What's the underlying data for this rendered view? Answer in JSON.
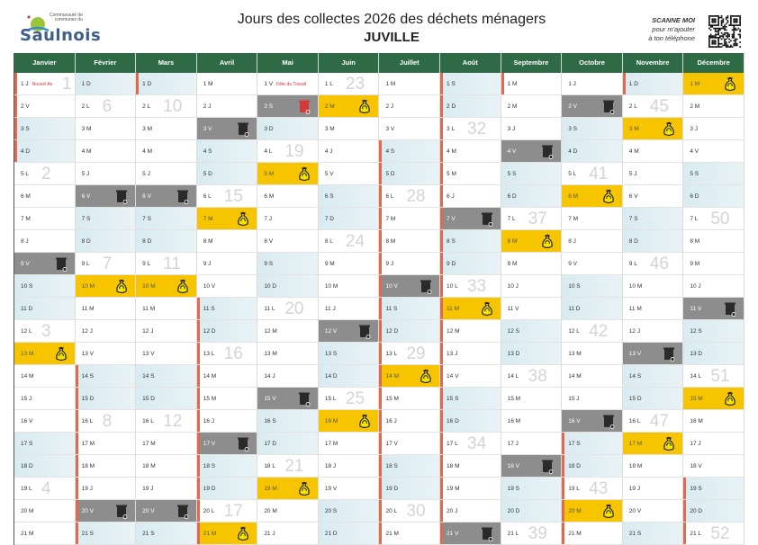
{
  "header": {
    "logo_top": "Communauté de communes du",
    "logo_word": "Saulnois",
    "title": "Jours des collectes 2026 des déchets ménagers",
    "commune": "JUVILLE",
    "scan_title": "SCANNE MOI",
    "scan_line1": "pour m'ajouter",
    "scan_line2": "à ton téléphone"
  },
  "colors": {
    "header": "#2e6a45",
    "bin": "#8d8d8d",
    "bag": "#f6c500",
    "weekend": "#d9ebf1",
    "holiday_bar": "#e06a4e"
  },
  "legend_icons": {
    "bin": "trash-bin-icon",
    "bag": "recycling-bag-icon"
  },
  "months": [
    {
      "name": "Janvier",
      "days": [
        "1 J",
        "2 V",
        "3 S",
        "4 D",
        "5 L",
        "6 M",
        "7 M",
        "8 J",
        "9 V",
        "10 S",
        "11 D",
        "12 L",
        "13 M",
        "14 M",
        "15 J",
        "16 V",
        "17 S",
        "18 D",
        "19 L",
        "20 M",
        "21 M"
      ],
      "weeks": {
        "1": "1",
        "5": "2",
        "12": "3",
        "19": "4"
      },
      "bin": [
        9
      ],
      "bag": [
        13
      ],
      "holidays": [
        1,
        2,
        3,
        4
      ],
      "notes": {
        "1": "Nouvel An"
      }
    },
    {
      "name": "Février",
      "days": [
        "1 D",
        "2 L",
        "3 M",
        "4 M",
        "5 J",
        "6 V",
        "7 S",
        "8 D",
        "9 L",
        "10 M",
        "11 M",
        "12 J",
        "13 V",
        "14 S",
        "15 D",
        "16 L",
        "17 M",
        "18 M",
        "19 J",
        "20 V",
        "21 S"
      ],
      "weeks": {
        "2": "6",
        "9": "7",
        "16": "8"
      },
      "bin": [
        6,
        20
      ],
      "bag": [
        10
      ],
      "holidays": [
        14,
        15,
        16,
        17,
        18,
        19,
        20,
        21
      ],
      "notes": {}
    },
    {
      "name": "Mars",
      "days": [
        "1 D",
        "2 L",
        "3 M",
        "4 M",
        "5 J",
        "6 V",
        "7 S",
        "8 D",
        "9 L",
        "10 M",
        "11 M",
        "12 J",
        "13 V",
        "14 S",
        "15 D",
        "16 L",
        "17 M",
        "18 M",
        "19 J",
        "20 V",
        "21 S"
      ],
      "weeks": {
        "2": "10",
        "9": "11",
        "16": "12"
      },
      "bin": [
        6,
        20
      ],
      "bag": [
        10
      ],
      "holidays": [
        1
      ],
      "notes": {}
    },
    {
      "name": "Avril",
      "days": [
        "1 M",
        "2 J",
        "3 V",
        "4 S",
        "5 D",
        "6 L",
        "7 M",
        "8 M",
        "9 J",
        "10 V",
        "11 S",
        "12 D",
        "13 L",
        "14 M",
        "15 M",
        "16 J",
        "17 V",
        "18 S",
        "19 D",
        "20 L",
        "21 M"
      ],
      "weeks": {
        "6": "15",
        "13": "16",
        "20": "17"
      },
      "bin": [
        3,
        17
      ],
      "bag": [
        7,
        21
      ],
      "holidays": [
        11,
        12,
        13,
        14,
        15,
        16,
        17,
        18,
        19,
        20,
        21
      ],
      "notes": {}
    },
    {
      "name": "Mai",
      "days": [
        "1 V",
        "2 S",
        "3 D",
        "4 L",
        "5 M",
        "6 M",
        "7 J",
        "8 V",
        "9 S",
        "10 D",
        "11 L",
        "12 M",
        "13 M",
        "14 J",
        "15 V",
        "16 S",
        "17 D",
        "18 L",
        "19 M",
        "20 M",
        "21 J"
      ],
      "weeks": {
        "4": "19",
        "11": "20",
        "18": "21"
      },
      "bin": [
        2,
        15
      ],
      "bin_shifted": [
        2
      ],
      "bag": [
        5,
        19
      ],
      "holidays": [],
      "notes": {
        "1": "Fête du Travail"
      }
    },
    {
      "name": "Juin",
      "days": [
        "1 L",
        "2 M",
        "3 M",
        "4 J",
        "5 V",
        "6 S",
        "7 D",
        "8 L",
        "9 M",
        "10 M",
        "11 J",
        "12 V",
        "13 S",
        "14 D",
        "15 L",
        "16 M",
        "17 M",
        "18 J",
        "19 V",
        "20 S",
        "21 D"
      ],
      "weeks": {
        "1": "23",
        "8": "24",
        "15": "25"
      },
      "bin": [
        12
      ],
      "bag": [
        2,
        16
      ],
      "holidays": [],
      "notes": {}
    },
    {
      "name": "Juillet",
      "days": [
        "1 M",
        "2 J",
        "3 V",
        "4 S",
        "5 D",
        "6 L",
        "7 M",
        "8 M",
        "9 J",
        "10 V",
        "11 S",
        "12 D",
        "13 L",
        "14 M",
        "15 M",
        "16 J",
        "17 V",
        "18 S",
        "19 D",
        "20 L",
        "21 M"
      ],
      "weeks": {
        "6": "28",
        "13": "29",
        "20": "30"
      },
      "bin": [
        10
      ],
      "bag": [
        14
      ],
      "holidays": [
        4,
        5,
        6,
        7,
        8,
        9,
        10,
        11,
        12,
        13,
        14,
        15,
        16,
        17,
        18,
        19,
        20,
        21
      ],
      "notes": {}
    },
    {
      "name": "Août",
      "days": [
        "1 S",
        "2 D",
        "3 L",
        "4 M",
        "5 M",
        "6 J",
        "7 V",
        "8 S",
        "9 D",
        "10 L",
        "11 M",
        "12 M",
        "13 J",
        "14 V",
        "15 S",
        "16 D",
        "17 L",
        "18 M",
        "19 M",
        "20 J",
        "21 V"
      ],
      "weeks": {
        "3": "32",
        "10": "33",
        "17": "34"
      },
      "bin": [
        7,
        21
      ],
      "bag": [
        11
      ],
      "holidays": [
        1,
        2,
        3,
        4,
        5,
        6,
        7,
        8,
        9,
        10,
        11,
        12,
        13,
        14,
        15,
        16,
        17,
        18,
        19,
        20,
        21
      ],
      "notes": {}
    },
    {
      "name": "Septembre",
      "days": [
        "1 M",
        "2 M",
        "3 J",
        "4 V",
        "5 S",
        "6 D",
        "7 L",
        "8 M",
        "9 M",
        "10 J",
        "11 V",
        "12 S",
        "13 D",
        "14 L",
        "15 M",
        "16 M",
        "17 J",
        "18 V",
        "19 S",
        "20 D",
        "21 L"
      ],
      "weeks": {
        "7": "37",
        "14": "38",
        "21": "39"
      },
      "bin": [
        4,
        18
      ],
      "bag": [
        8
      ],
      "holidays": [
        1
      ],
      "notes": {}
    },
    {
      "name": "Octobre",
      "days": [
        "1 J",
        "2 V",
        "3 S",
        "4 D",
        "5 L",
        "6 M",
        "7 M",
        "8 J",
        "9 V",
        "10 S",
        "11 D",
        "12 L",
        "13 M",
        "14 M",
        "15 J",
        "16 V",
        "17 S",
        "18 D",
        "19 L",
        "20 M",
        "21 M"
      ],
      "weeks": {
        "5": "41",
        "12": "42",
        "19": "43"
      },
      "bin": [
        2,
        16
      ],
      "bag": [
        6,
        20
      ],
      "holidays": [
        17,
        18,
        19,
        20,
        21
      ],
      "notes": {}
    },
    {
      "name": "Novembre",
      "days": [
        "1 D",
        "2 L",
        "3 M",
        "4 M",
        "5 J",
        "6 V",
        "7 S",
        "8 D",
        "9 L",
        "10 M",
        "11 M",
        "12 J",
        "13 V",
        "14 S",
        "15 D",
        "16 L",
        "17 M",
        "18 M",
        "19 J",
        "20 V",
        "21 S"
      ],
      "weeks": {
        "2": "45",
        "9": "46",
        "16": "47"
      },
      "bin": [
        13
      ],
      "bag": [
        3,
        17
      ],
      "holidays": [
        1
      ],
      "notes": {}
    },
    {
      "name": "Décembre",
      "days": [
        "1 M",
        "2 M",
        "3 J",
        "4 V",
        "5 S",
        "6 D",
        "7 L",
        "8 M",
        "9 M",
        "10 J",
        "11 V",
        "12 S",
        "13 D",
        "14 L",
        "15 M",
        "16 M",
        "17 J",
        "18 V",
        "19 S",
        "20 D",
        "21 L"
      ],
      "weeks": {
        "7": "50",
        "14": "51",
        "21": "52"
      },
      "bin": [
        11
      ],
      "bag": [
        1,
        15
      ],
      "holidays": [
        19,
        20,
        21
      ],
      "notes": {}
    }
  ]
}
